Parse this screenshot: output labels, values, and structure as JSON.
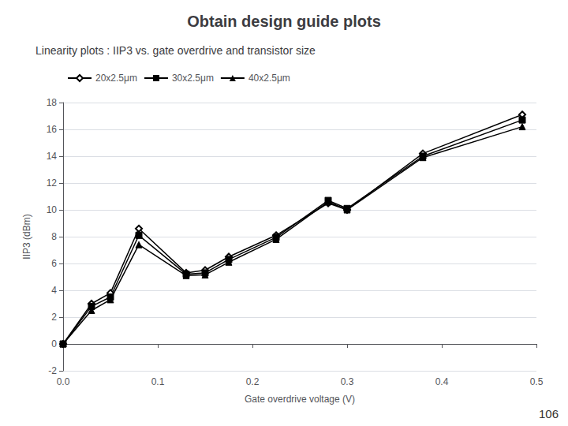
{
  "chart_data": {
    "type": "line",
    "title": "Obtain design guide plots",
    "subtitle": "Linearity plots : IIP3 vs. gate overdrive and transistor size",
    "annotations": [
      "106"
    ],
    "xlabel": "Gate overdrive voltage (V)",
    "ylabel": "IIP3 (dBm)",
    "xlim": [
      0,
      0.5
    ],
    "ylim": [
      -2,
      18
    ],
    "xticks": [
      {
        "value": 0,
        "label": "0.0"
      },
      0.1,
      0.2,
      0.3,
      0.4,
      0.5
    ],
    "yticks": [
      -2,
      0,
      2,
      4,
      6,
      8,
      10,
      12,
      14,
      16,
      18
    ],
    "grid": true,
    "legend": "upper left",
    "x": [
      0.0,
      0.03,
      0.05,
      0.08,
      0.13,
      0.15,
      0.175,
      0.225,
      0.28,
      0.3,
      0.38,
      0.485
    ],
    "series": [
      {
        "name": "20x2.5μm",
        "color": "#000000",
        "marker": "open diamond",
        "line_style": "solid",
        "values": [
          0.0,
          3.0,
          3.8,
          8.6,
          5.3,
          5.5,
          6.5,
          8.1,
          10.5,
          10.0,
          14.2,
          17.1
        ]
      },
      {
        "name": "30x2.5μm",
        "color": "#000000",
        "marker": "square",
        "line_style": "solid",
        "values": [
          0.0,
          2.8,
          3.5,
          8.1,
          5.2,
          5.3,
          6.3,
          7.95,
          10.7,
          10.1,
          14.0,
          16.7
        ]
      },
      {
        "name": "40x2.5μm",
        "color": "#000000",
        "marker": "triangle",
        "line_style": "solid",
        "values": [
          0.0,
          2.5,
          3.3,
          7.4,
          5.1,
          5.15,
          6.1,
          7.8,
          10.6,
          10.0,
          13.9,
          16.2
        ]
      }
    ]
  }
}
